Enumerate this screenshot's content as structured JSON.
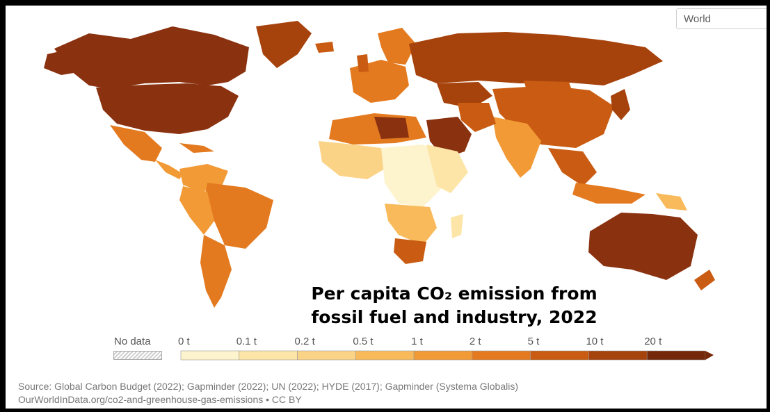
{
  "region_select": {
    "value": "World"
  },
  "title": {
    "line1": "Per capita CO₂ emission from",
    "line2": "fossil fuel and industry, 2022"
  },
  "legend": {
    "no_data_label": "No data",
    "ticks": [
      "0 t",
      "0.1 t",
      "0.2 t",
      "0.5 t",
      "1 t",
      "2 t",
      "5 t",
      "10 t",
      "20 t"
    ],
    "colors": [
      "#fdf3cc",
      "#fce5a6",
      "#fbd387",
      "#f8ba5a",
      "#f29a36",
      "#e47a1f",
      "#c95c12",
      "#a6420c",
      "#76280a"
    ]
  },
  "source": {
    "line1": "Source: Global Carbon Budget (2022); Gapminder (2022); UN (2022); HYDE (2017); Gapminder (Systema Globalis)",
    "line2": "OurWorldInData.org/co2-and-greenhouse-gas-emissions • CC BY"
  }
}
